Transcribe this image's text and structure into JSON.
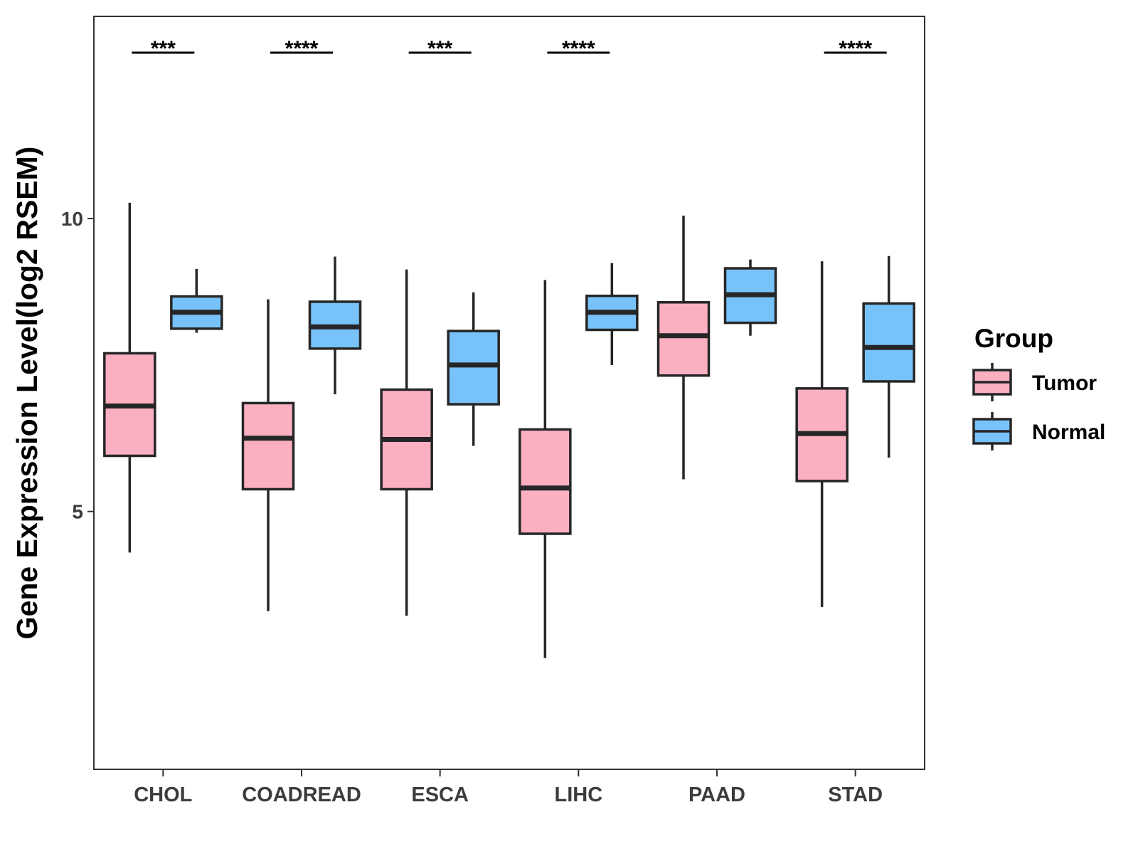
{
  "chart_data": {
    "type": "box",
    "title": "",
    "xlabel": "",
    "ylabel": "Gene Expression Level(log2 RSEM)",
    "ylim": [
      0.6,
      13.45
    ],
    "yticks": [
      5,
      10
    ],
    "ytick_labels": [
      "5",
      "10"
    ],
    "categories": [
      "CHOL",
      "COADREAD",
      "ESCA",
      "LIHC",
      "PAAD",
      "STAD"
    ],
    "legend": {
      "title": "Group",
      "position": "right",
      "entries": [
        "Tumor",
        "Normal"
      ]
    },
    "colors": {
      "Tumor": "#FBB0C2",
      "Normal": "#77C2F9",
      "outline": "#262626"
    },
    "series": [
      {
        "name": "Tumor",
        "boxes": [
          {
            "category": "CHOL",
            "min": 4.3,
            "q1": 5.95,
            "median": 6.8,
            "q3": 7.7,
            "max": 10.27
          },
          {
            "category": "COADREAD",
            "min": 3.3,
            "q1": 5.38,
            "median": 6.25,
            "q3": 6.85,
            "max": 8.62
          },
          {
            "category": "ESCA",
            "min": 3.22,
            "q1": 5.38,
            "median": 6.23,
            "q3": 7.08,
            "max": 9.13
          },
          {
            "category": "LIHC",
            "min": 2.5,
            "q1": 4.62,
            "median": 5.4,
            "q3": 6.4,
            "max": 8.95
          },
          {
            "category": "PAAD",
            "min": 5.55,
            "q1": 7.32,
            "median": 8.0,
            "q3": 8.57,
            "max": 10.05
          },
          {
            "category": "STAD",
            "min": 3.37,
            "q1": 5.52,
            "median": 6.33,
            "q3": 7.1,
            "max": 9.27
          }
        ]
      },
      {
        "name": "Normal",
        "boxes": [
          {
            "category": "CHOL",
            "min": 8.05,
            "q1": 8.12,
            "median": 8.4,
            "q3": 8.67,
            "max": 9.14
          },
          {
            "category": "COADREAD",
            "min": 7.0,
            "q1": 7.78,
            "median": 8.15,
            "q3": 8.58,
            "max": 9.35
          },
          {
            "category": "ESCA",
            "min": 6.12,
            "q1": 6.83,
            "median": 7.5,
            "q3": 8.08,
            "max": 8.74
          },
          {
            "category": "LIHC",
            "min": 7.5,
            "q1": 8.1,
            "median": 8.4,
            "q3": 8.68,
            "max": 9.24
          },
          {
            "category": "PAAD",
            "min": 8.0,
            "q1": 8.22,
            "median": 8.7,
            "q3": 9.15,
            "max": 9.3
          },
          {
            "category": "STAD",
            "min": 5.92,
            "q1": 7.22,
            "median": 7.8,
            "q3": 8.55,
            "max": 9.36
          }
        ]
      }
    ],
    "annotations": [
      {
        "category": "CHOL",
        "text": "***"
      },
      {
        "category": "COADREAD",
        "text": "****"
      },
      {
        "category": "ESCA",
        "text": "***"
      },
      {
        "category": "LIHC",
        "text": "****"
      },
      {
        "category": "PAAD",
        "text": ""
      },
      {
        "category": "STAD",
        "text": "****"
      }
    ]
  }
}
